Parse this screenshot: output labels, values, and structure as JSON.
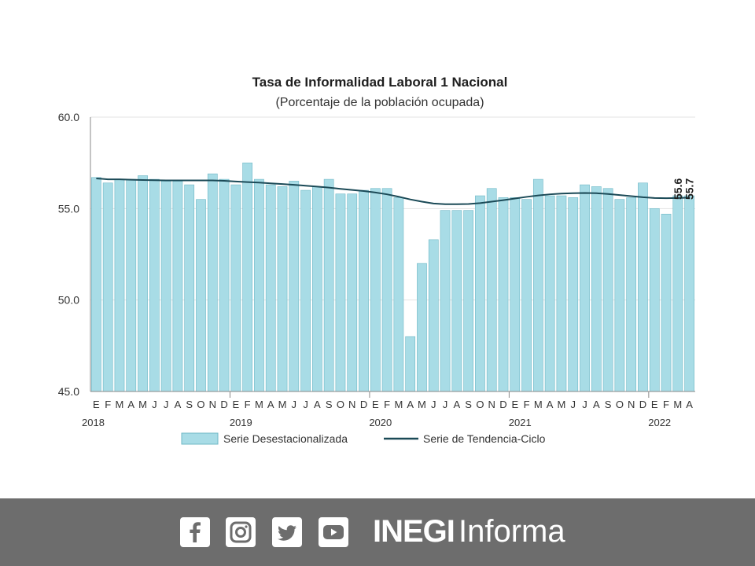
{
  "chart_data": {
    "type": "bar",
    "title": "Tasa de Informalidad Laboral 1 Nacional",
    "subtitle": "(Porcentaje de la población ocupada)",
    "ylim": [
      45.0,
      60.0
    ],
    "yticks": [
      "60.0",
      "55.0",
      "50.0",
      "45.0"
    ],
    "ytick_values": [
      60,
      55,
      50,
      45
    ],
    "categories": [
      "E",
      "F",
      "M",
      "A",
      "M",
      "J",
      "J",
      "A",
      "S",
      "O",
      "N",
      "D",
      "E",
      "F",
      "M",
      "A",
      "M",
      "J",
      "J",
      "A",
      "S",
      "O",
      "N",
      "D",
      "E",
      "F",
      "M",
      "A",
      "M",
      "J",
      "J",
      "A",
      "S",
      "O",
      "N",
      "D",
      "E",
      "F",
      "M",
      "A",
      "M",
      "J",
      "J",
      "A",
      "S",
      "O",
      "N",
      "D",
      "E",
      "F",
      "M",
      "A"
    ],
    "years": [
      {
        "label": "2018",
        "index": 0
      },
      {
        "label": "2019",
        "index": 12
      },
      {
        "label": "2020",
        "index": 24
      },
      {
        "label": "2021",
        "index": 36
      },
      {
        "label": "2022",
        "index": 48
      }
    ],
    "series": [
      {
        "name": "Serie Desestacionalizada",
        "kind": "bar",
        "color": "#a8dce6",
        "values": [
          56.7,
          56.4,
          56.6,
          56.6,
          56.8,
          56.6,
          56.5,
          56.5,
          56.3,
          55.5,
          56.9,
          56.6,
          56.3,
          57.5,
          56.6,
          56.3,
          56.2,
          56.5,
          56.0,
          56.2,
          56.6,
          55.8,
          55.8,
          56.0,
          56.1,
          56.1,
          55.6,
          48.0,
          52.0,
          53.3,
          54.9,
          54.9,
          54.9,
          55.7,
          56.1,
          55.6,
          55.6,
          55.5,
          56.6,
          55.7,
          55.7,
          55.6,
          56.3,
          56.2,
          56.1,
          55.5,
          55.6,
          56.4,
          55.0,
          54.7,
          55.7,
          55.7
        ]
      },
      {
        "name": "Serie de Tendencia-Ciclo",
        "kind": "line",
        "color": "#1b4a57",
        "values": [
          56.65,
          56.6,
          56.6,
          56.58,
          56.56,
          56.55,
          56.54,
          56.54,
          56.54,
          56.54,
          56.54,
          56.52,
          56.48,
          56.45,
          56.42,
          56.38,
          56.34,
          56.3,
          56.25,
          56.2,
          56.15,
          56.08,
          56.02,
          55.96,
          55.88,
          55.78,
          55.65,
          55.5,
          55.38,
          55.28,
          55.24,
          55.24,
          55.25,
          55.3,
          55.38,
          55.46,
          55.55,
          55.64,
          55.72,
          55.78,
          55.82,
          55.84,
          55.85,
          55.84,
          55.8,
          55.74,
          55.68,
          55.62,
          55.58,
          55.57,
          55.58,
          55.6
        ]
      }
    ],
    "data_labels": [
      "55.6",
      "55.7"
    ],
    "legend_position": "bottom",
    "grid": "horizontal"
  },
  "footer": {
    "brand_bold": "INEGI",
    "brand_light": "Informa",
    "icons": [
      "facebook-icon",
      "instagram-icon",
      "twitter-icon",
      "youtube-icon"
    ],
    "background": "#6d6d6d"
  }
}
